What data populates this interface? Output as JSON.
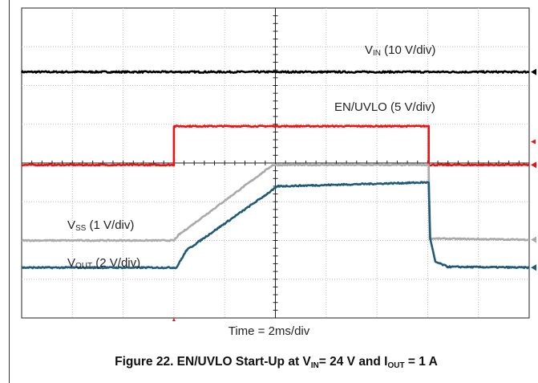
{
  "chart_data": {
    "type": "line",
    "title": "",
    "time_label": "Time = 2ms/div",
    "caption": {
      "prefix": "Figure 22. EN/UVLO Start-Up at V",
      "vin_sub": "IN",
      "middle": "= 24 V and I",
      "iout_sub": "OUT",
      "suffix": " = 1 A"
    },
    "grid": true,
    "x_divisions": 10,
    "y_divisions": 8,
    "x_unit": "div",
    "y_unit": "div",
    "series": [
      {
        "key": "vin",
        "label_main": "V",
        "label_sub": "IN",
        "label_rest": " (10 V/div)",
        "color": "#000000",
        "noise": 0.04,
        "points": [
          [
            0,
            6.35
          ],
          [
            10,
            6.35
          ]
        ]
      },
      {
        "key": "en",
        "label_main": "EN/UVLO (5 V/div)",
        "label_sub": "",
        "label_rest": "",
        "color": "#ee1111",
        "noise": 0.03,
        "points": [
          [
            0,
            3.95
          ],
          [
            3.0,
            3.95
          ],
          [
            3.0,
            4.95
          ],
          [
            8.02,
            4.95
          ],
          [
            8.02,
            3.95
          ],
          [
            10,
            3.95
          ]
        ]
      },
      {
        "key": "vss",
        "label_main": "V",
        "label_sub": "SS",
        "label_rest": " (1 V/div)",
        "color": "#aaaaaa",
        "noise": 0.03,
        "points": [
          [
            0,
            2.0
          ],
          [
            3.0,
            2.0
          ],
          [
            3.1,
            2.15
          ],
          [
            4.95,
            3.95
          ],
          [
            8.02,
            3.95
          ],
          [
            8.04,
            2.05
          ],
          [
            10,
            2.02
          ]
        ]
      },
      {
        "key": "vout",
        "label_main": "V",
        "label_sub": "OUT",
        "label_rest": " (2 V/div)",
        "color": "#1f5b78",
        "noise": 0.035,
        "points": [
          [
            0,
            1.3
          ],
          [
            3.05,
            1.3
          ],
          [
            3.25,
            1.75
          ],
          [
            5.05,
            3.4
          ],
          [
            8.02,
            3.5
          ],
          [
            8.05,
            2.05
          ],
          [
            8.15,
            1.45
          ],
          [
            8.4,
            1.32
          ],
          [
            10,
            1.3
          ]
        ]
      }
    ]
  }
}
